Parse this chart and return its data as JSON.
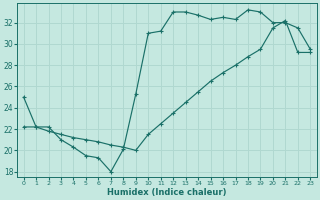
{
  "xlabel": "Humidex (Indice chaleur)",
  "bg_color": "#c5e8e0",
  "line_color": "#1a7068",
  "grid_color": "#b0d8d0",
  "ylim": [
    17.5,
    33.8
  ],
  "xlim": [
    -0.5,
    23.5
  ],
  "yticks": [
    18,
    20,
    22,
    24,
    26,
    28,
    30,
    32
  ],
  "xticks": [
    0,
    1,
    2,
    3,
    4,
    5,
    6,
    7,
    8,
    9,
    10,
    11,
    12,
    13,
    14,
    15,
    16,
    17,
    18,
    19,
    20,
    21,
    22,
    23
  ],
  "curve1_x": [
    0,
    1,
    2,
    3,
    4,
    5,
    6,
    7,
    8,
    9,
    10,
    11,
    12,
    13,
    14,
    15,
    16,
    17,
    18,
    19,
    20,
    21,
    22,
    23
  ],
  "curve1_y": [
    25.0,
    22.2,
    22.2,
    21.0,
    20.3,
    19.5,
    19.3,
    18.0,
    20.1,
    25.3,
    31.0,
    31.2,
    33.0,
    33.0,
    32.7,
    32.3,
    32.5,
    32.3,
    33.2,
    33.0,
    32.0,
    32.0,
    31.5,
    29.5
  ],
  "curve2_x": [
    0,
    1,
    2,
    3,
    4,
    5,
    6,
    7,
    8,
    9,
    10,
    11,
    12,
    13,
    14,
    15,
    16,
    17,
    18,
    19,
    20,
    21,
    22,
    23
  ],
  "curve2_y": [
    22.2,
    22.2,
    21.8,
    21.5,
    21.2,
    21.0,
    20.8,
    20.5,
    20.3,
    20.0,
    21.5,
    22.5,
    23.5,
    24.5,
    25.5,
    26.5,
    27.3,
    28.0,
    28.8,
    29.5,
    31.5,
    32.2,
    29.2,
    29.2
  ]
}
